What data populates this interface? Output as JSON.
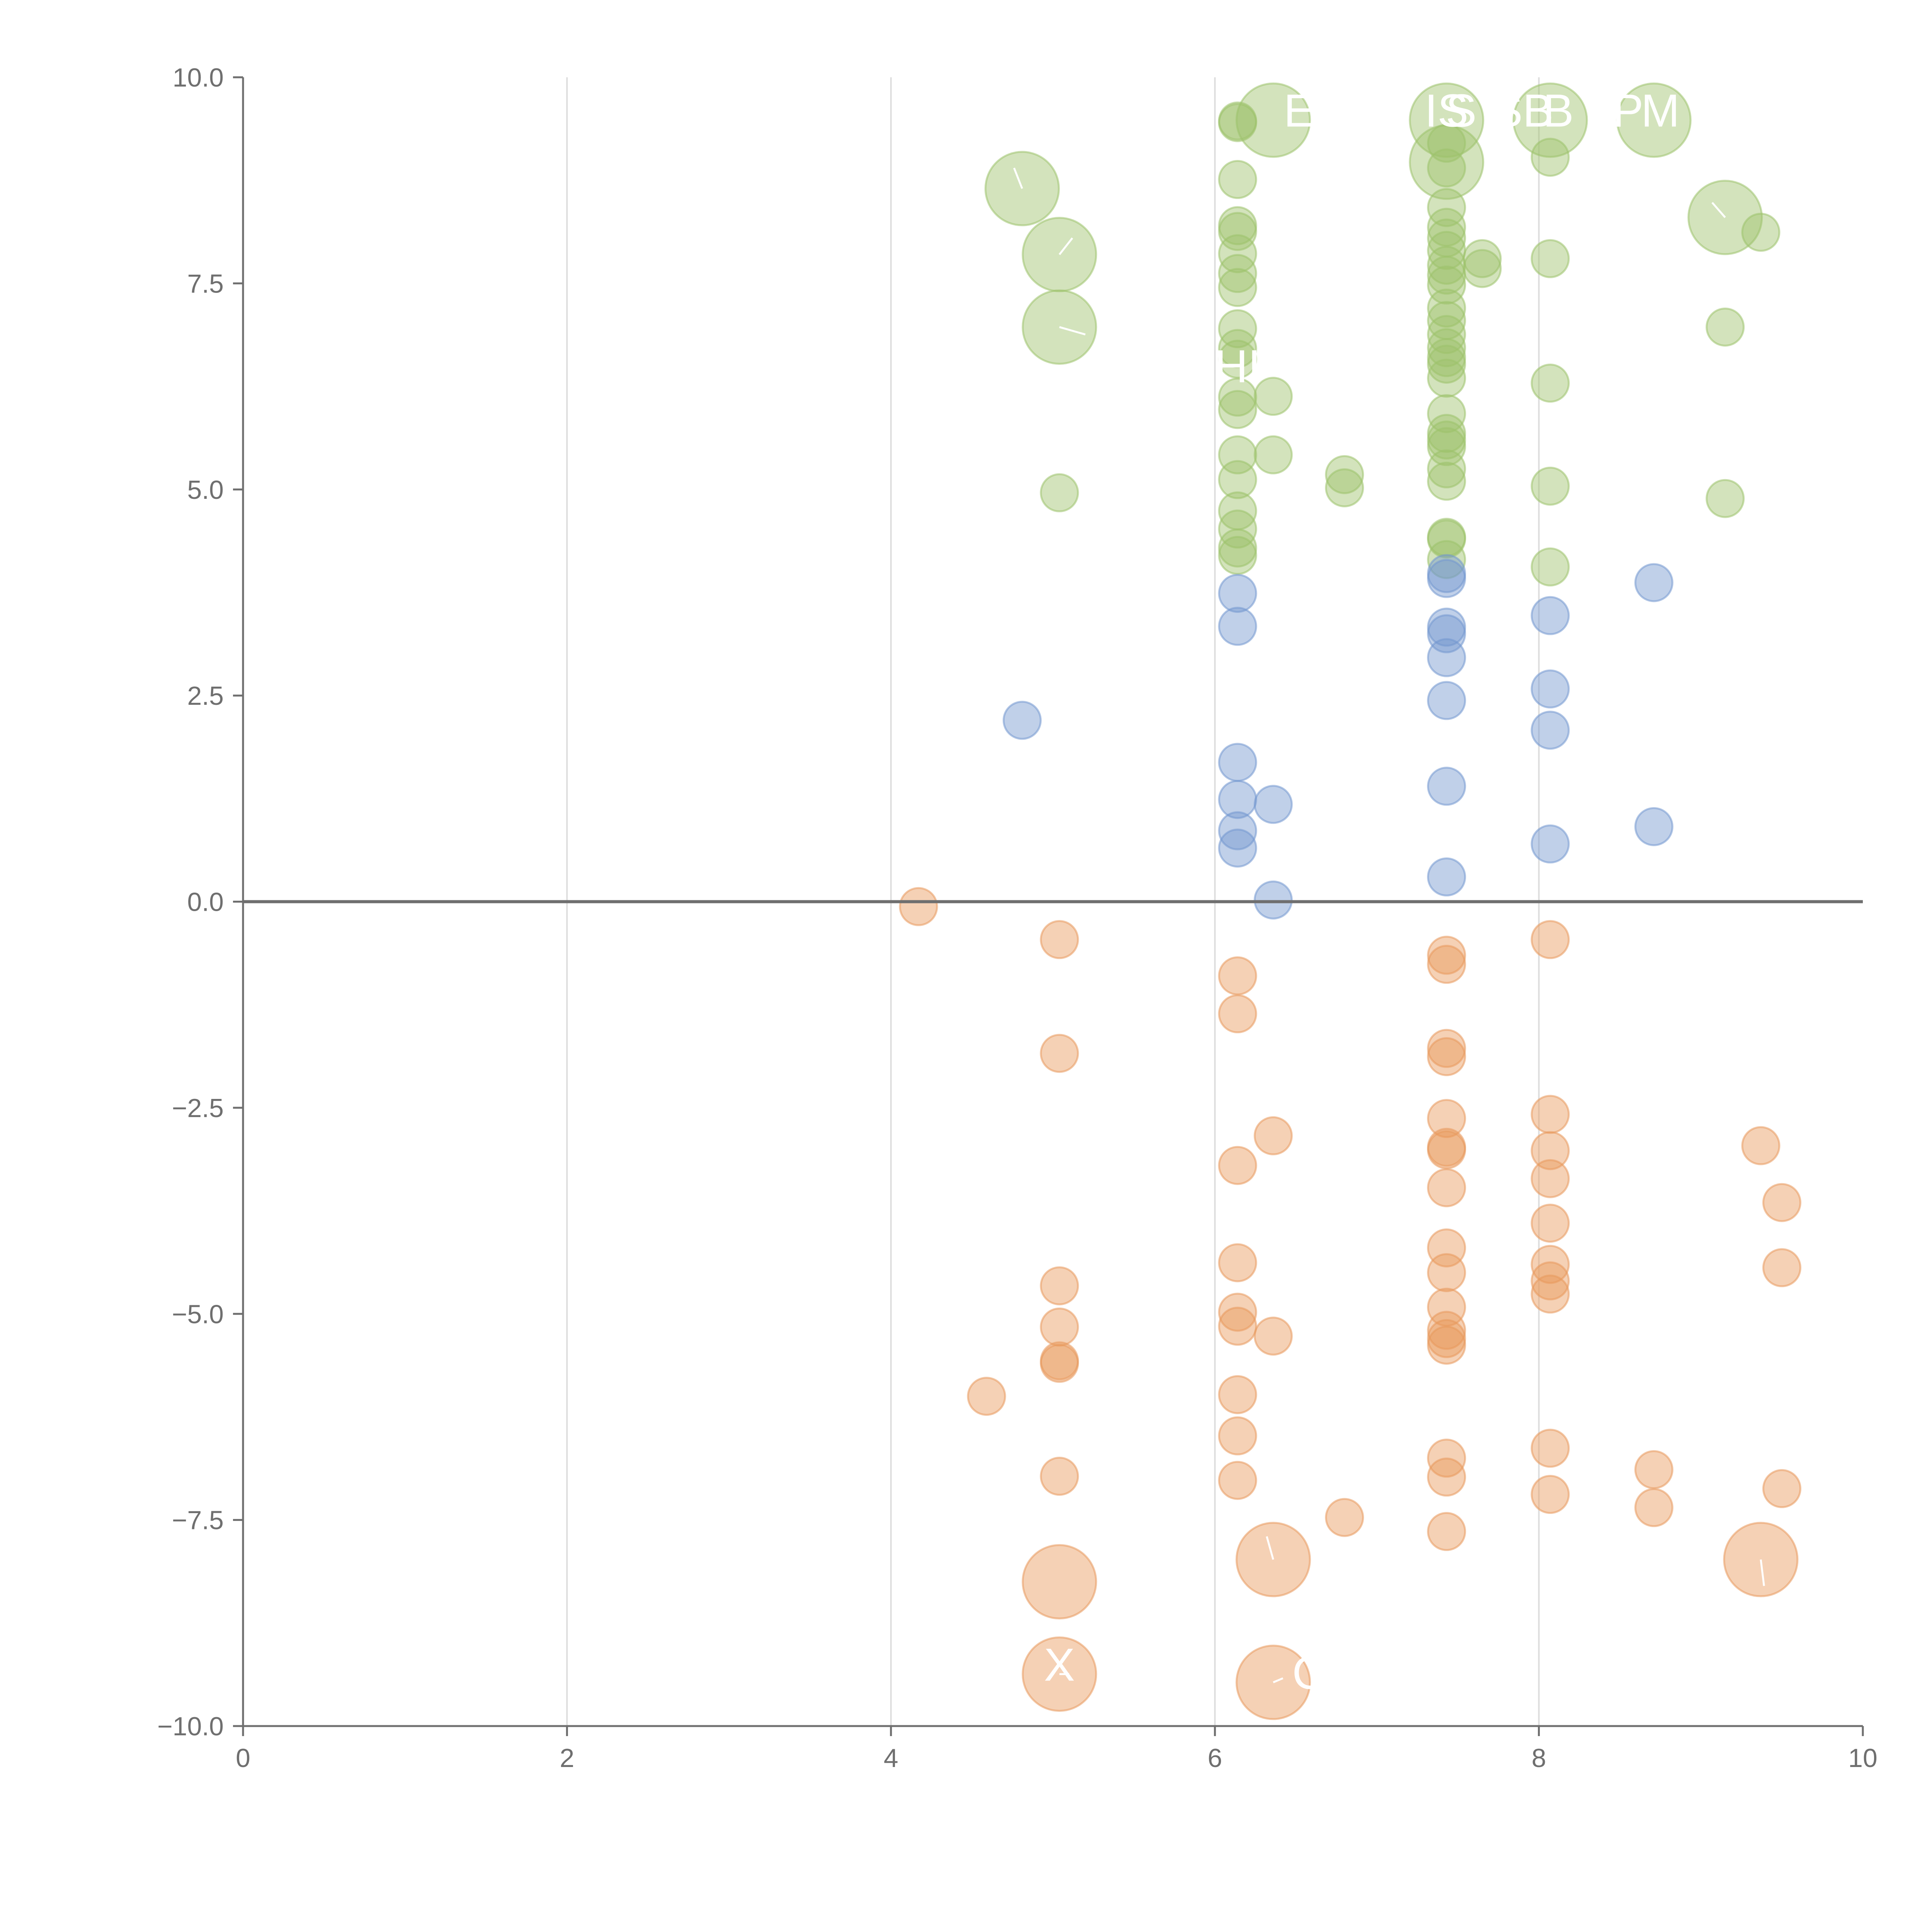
{
  "chart_data": {
    "type": "scatter",
    "subtype": "bubble",
    "title": "",
    "xlabel": "",
    "ylabel": "",
    "xlim": [
      0,
      10
    ],
    "ylim": [
      -10,
      10
    ],
    "x_ticks": [
      "0",
      "2",
      "4",
      "6",
      "8",
      "10"
    ],
    "y_ticks": [
      "10.0",
      "7.5",
      "5.0",
      "2.5",
      "0.0",
      "−2.5",
      "−5.0",
      "−7.5",
      "−10.0"
    ],
    "x_gridlines": [
      2,
      4,
      6,
      8
    ],
    "zero_line": 0,
    "colors": {
      "green": "#9dc26b",
      "blue": "#7397cf",
      "orange": "#e8995c",
      "axis": "#6f6f6f",
      "grid": "#dddddd",
      "label": "#ffffff"
    },
    "series": [
      {
        "name": "green",
        "color": "#9dc26b",
        "points": [
          {
            "x": 4.81,
            "y": 8.65,
            "s": 2
          },
          {
            "x": 5.04,
            "y": 7.85,
            "s": 2
          },
          {
            "x": 5.04,
            "y": 6.97,
            "s": 2
          },
          {
            "x": 5.04,
            "y": 4.96,
            "s": 1
          },
          {
            "x": 6.14,
            "y": 9.47,
            "s": 1
          },
          {
            "x": 6.14,
            "y": 9.45,
            "s": 1
          },
          {
            "x": 6.14,
            "y": 8.76,
            "s": 1
          },
          {
            "x": 6.14,
            "y": 8.2,
            "s": 1
          },
          {
            "x": 6.14,
            "y": 8.13,
            "s": 1
          },
          {
            "x": 6.14,
            "y": 7.86,
            "s": 1
          },
          {
            "x": 6.14,
            "y": 7.62,
            "s": 1
          },
          {
            "x": 6.14,
            "y": 7.45,
            "s": 1
          },
          {
            "x": 6.14,
            "y": 6.95,
            "s": 1
          },
          {
            "x": 6.14,
            "y": 6.71,
            "s": 1
          },
          {
            "x": 6.14,
            "y": 6.58,
            "s": 1
          },
          {
            "x": 6.14,
            "y": 6.12,
            "s": 1
          },
          {
            "x": 6.14,
            "y": 5.97,
            "s": 1
          },
          {
            "x": 6.14,
            "y": 5.42,
            "s": 1
          },
          {
            "x": 6.14,
            "y": 5.12,
            "s": 1
          },
          {
            "x": 6.14,
            "y": 4.74,
            "s": 1
          },
          {
            "x": 6.14,
            "y": 4.52,
            "s": 1
          },
          {
            "x": 6.14,
            "y": 4.29,
            "s": 1
          },
          {
            "x": 6.14,
            "y": 4.2,
            "s": 1
          },
          {
            "x": 6.36,
            "y": 9.48,
            "s": 2
          },
          {
            "x": 6.36,
            "y": 6.13,
            "s": 1
          },
          {
            "x": 6.36,
            "y": 5.42,
            "s": 1
          },
          {
            "x": 6.8,
            "y": 5.18,
            "s": 1
          },
          {
            "x": 6.8,
            "y": 5.02,
            "s": 1
          },
          {
            "x": 7.43,
            "y": 9.48,
            "s": 2
          },
          {
            "x": 7.43,
            "y": 8.97,
            "s": 2
          },
          {
            "x": 7.43,
            "y": 9.2,
            "s": 1
          },
          {
            "x": 7.43,
            "y": 8.9,
            "s": 1
          },
          {
            "x": 7.43,
            "y": 8.42,
            "s": 1
          },
          {
            "x": 7.43,
            "y": 8.18,
            "s": 1
          },
          {
            "x": 7.43,
            "y": 8.05,
            "s": 1
          },
          {
            "x": 7.43,
            "y": 7.9,
            "s": 1
          },
          {
            "x": 7.43,
            "y": 7.72,
            "s": 1
          },
          {
            "x": 7.43,
            "y": 7.6,
            "s": 1
          },
          {
            "x": 7.43,
            "y": 7.48,
            "s": 1
          },
          {
            "x": 7.43,
            "y": 7.2,
            "s": 1
          },
          {
            "x": 7.43,
            "y": 7.05,
            "s": 1
          },
          {
            "x": 7.43,
            "y": 6.88,
            "s": 1
          },
          {
            "x": 7.43,
            "y": 6.72,
            "s": 1
          },
          {
            "x": 7.43,
            "y": 6.6,
            "s": 1
          },
          {
            "x": 7.43,
            "y": 6.52,
            "s": 1
          },
          {
            "x": 7.43,
            "y": 6.35,
            "s": 1
          },
          {
            "x": 7.43,
            "y": 5.92,
            "s": 1
          },
          {
            "x": 7.43,
            "y": 5.68,
            "s": 1
          },
          {
            "x": 7.43,
            "y": 5.6,
            "s": 1
          },
          {
            "x": 7.43,
            "y": 5.52,
            "s": 1
          },
          {
            "x": 7.43,
            "y": 5.25,
            "s": 1
          },
          {
            "x": 7.43,
            "y": 5.1,
            "s": 1
          },
          {
            "x": 7.43,
            "y": 4.42,
            "s": 1
          },
          {
            "x": 7.43,
            "y": 4.4,
            "s": 1
          },
          {
            "x": 7.43,
            "y": 4.15,
            "s": 1
          },
          {
            "x": 7.65,
            "y": 7.8,
            "s": 1
          },
          {
            "x": 7.65,
            "y": 7.68,
            "s": 1
          },
          {
            "x": 8.07,
            "y": 9.48,
            "s": 2
          },
          {
            "x": 8.07,
            "y": 9.03,
            "s": 1
          },
          {
            "x": 8.07,
            "y": 7.8,
            "s": 1
          },
          {
            "x": 8.07,
            "y": 6.29,
            "s": 1
          },
          {
            "x": 8.07,
            "y": 5.04,
            "s": 1
          },
          {
            "x": 8.07,
            "y": 4.06,
            "s": 1
          },
          {
            "x": 8.71,
            "y": 9.48,
            "s": 2
          },
          {
            "x": 9.15,
            "y": 8.3,
            "s": 2
          },
          {
            "x": 9.15,
            "y": 6.97,
            "s": 1
          },
          {
            "x": 9.15,
            "y": 4.89,
            "s": 1
          },
          {
            "x": 9.37,
            "y": 8.12,
            "s": 1
          }
        ]
      },
      {
        "name": "blue",
        "color": "#7397cf",
        "points": [
          {
            "x": 4.81,
            "y": 2.2,
            "s": 1
          },
          {
            "x": 6.14,
            "y": 3.74,
            "s": 1
          },
          {
            "x": 6.14,
            "y": 3.34,
            "s": 1
          },
          {
            "x": 6.14,
            "y": 1.69,
            "s": 1
          },
          {
            "x": 6.14,
            "y": 1.24,
            "s": 1
          },
          {
            "x": 6.14,
            "y": 0.86,
            "s": 1
          },
          {
            "x": 6.14,
            "y": 0.65,
            "s": 1
          },
          {
            "x": 6.36,
            "y": 1.18,
            "s": 1
          },
          {
            "x": 6.36,
            "y": 0.02,
            "s": 1
          },
          {
            "x": 7.43,
            "y": 3.98,
            "s": 1
          },
          {
            "x": 7.43,
            "y": 3.92,
            "s": 1
          },
          {
            "x": 7.43,
            "y": 3.33,
            "s": 1
          },
          {
            "x": 7.43,
            "y": 3.25,
            "s": 1
          },
          {
            "x": 7.43,
            "y": 2.96,
            "s": 1
          },
          {
            "x": 7.43,
            "y": 2.44,
            "s": 1
          },
          {
            "x": 7.43,
            "y": 1.4,
            "s": 1
          },
          {
            "x": 7.43,
            "y": 0.3,
            "s": 1
          },
          {
            "x": 8.07,
            "y": 3.47,
            "s": 1
          },
          {
            "x": 8.07,
            "y": 2.58,
            "s": 1
          },
          {
            "x": 8.07,
            "y": 2.08,
            "s": 1
          },
          {
            "x": 8.07,
            "y": 0.7,
            "s": 1
          },
          {
            "x": 8.71,
            "y": 3.87,
            "s": 1
          },
          {
            "x": 8.71,
            "y": 0.91,
            "s": 1
          }
        ]
      },
      {
        "name": "orange",
        "color": "#e8995c",
        "points": [
          {
            "x": 4.17,
            "y": -0.06,
            "s": 1
          },
          {
            "x": 4.59,
            "y": -6.0,
            "s": 1
          },
          {
            "x": 5.04,
            "y": -0.46,
            "s": 1
          },
          {
            "x": 5.04,
            "y": -1.84,
            "s": 1
          },
          {
            "x": 5.04,
            "y": -4.66,
            "s": 1
          },
          {
            "x": 5.04,
            "y": -5.16,
            "s": 1
          },
          {
            "x": 5.04,
            "y": -5.57,
            "s": 1
          },
          {
            "x": 5.04,
            "y": -5.6,
            "s": 1
          },
          {
            "x": 5.04,
            "y": -6.97,
            "s": 1
          },
          {
            "x": 5.04,
            "y": -8.25,
            "s": 2
          },
          {
            "x": 5.04,
            "y": -9.37,
            "s": 2
          },
          {
            "x": 6.14,
            "y": -0.9,
            "s": 1
          },
          {
            "x": 6.14,
            "y": -1.36,
            "s": 1
          },
          {
            "x": 6.14,
            "y": -3.2,
            "s": 1
          },
          {
            "x": 6.14,
            "y": -4.38,
            "s": 1
          },
          {
            "x": 6.14,
            "y": -4.98,
            "s": 1
          },
          {
            "x": 6.14,
            "y": -5.15,
            "s": 1
          },
          {
            "x": 6.14,
            "y": -5.98,
            "s": 1
          },
          {
            "x": 6.14,
            "y": -6.48,
            "s": 1
          },
          {
            "x": 6.14,
            "y": -7.02,
            "s": 1
          },
          {
            "x": 6.36,
            "y": -2.84,
            "s": 1
          },
          {
            "x": 6.36,
            "y": -5.27,
            "s": 1
          },
          {
            "x": 6.36,
            "y": -7.98,
            "s": 2
          },
          {
            "x": 6.36,
            "y": -9.47,
            "s": 2
          },
          {
            "x": 6.8,
            "y": -7.47,
            "s": 1
          },
          {
            "x": 7.43,
            "y": -0.65,
            "s": 1
          },
          {
            "x": 7.43,
            "y": -0.76,
            "s": 1
          },
          {
            "x": 7.43,
            "y": -1.78,
            "s": 1
          },
          {
            "x": 7.43,
            "y": -1.88,
            "s": 1
          },
          {
            "x": 7.43,
            "y": -2.63,
            "s": 1
          },
          {
            "x": 7.43,
            "y": -2.98,
            "s": 1
          },
          {
            "x": 7.43,
            "y": -3.01,
            "s": 1
          },
          {
            "x": 7.43,
            "y": -3.47,
            "s": 1
          },
          {
            "x": 7.43,
            "y": -4.2,
            "s": 1
          },
          {
            "x": 7.43,
            "y": -4.5,
            "s": 1
          },
          {
            "x": 7.43,
            "y": -4.92,
            "s": 1
          },
          {
            "x": 7.43,
            "y": -5.2,
            "s": 1
          },
          {
            "x": 7.43,
            "y": -5.3,
            "s": 1
          },
          {
            "x": 7.43,
            "y": -5.38,
            "s": 1
          },
          {
            "x": 7.43,
            "y": -6.75,
            "s": 1
          },
          {
            "x": 7.43,
            "y": -6.98,
            "s": 1
          },
          {
            "x": 7.43,
            "y": -7.64,
            "s": 1
          },
          {
            "x": 8.07,
            "y": -0.46,
            "s": 1
          },
          {
            "x": 8.07,
            "y": -2.58,
            "s": 1
          },
          {
            "x": 8.07,
            "y": -3.02,
            "s": 1
          },
          {
            "x": 8.07,
            "y": -3.36,
            "s": 1
          },
          {
            "x": 8.07,
            "y": -3.9,
            "s": 1
          },
          {
            "x": 8.07,
            "y": -4.4,
            "s": 1
          },
          {
            "x": 8.07,
            "y": -4.6,
            "s": 1
          },
          {
            "x": 8.07,
            "y": -4.76,
            "s": 1
          },
          {
            "x": 8.07,
            "y": -6.63,
            "s": 1
          },
          {
            "x": 8.07,
            "y": -7.19,
            "s": 1
          },
          {
            "x": 8.71,
            "y": -6.89,
            "s": 1
          },
          {
            "x": 8.71,
            "y": -7.35,
            "s": 1
          },
          {
            "x": 9.37,
            "y": -2.96,
            "s": 1
          },
          {
            "x": 9.37,
            "y": -7.98,
            "s": 2
          },
          {
            "x": 9.5,
            "y": -3.65,
            "s": 1
          },
          {
            "x": 9.5,
            "y": -4.44,
            "s": 1
          },
          {
            "x": 9.5,
            "y": -7.12,
            "s": 1
          }
        ]
      }
    ],
    "annotations": [
      {
        "text": "E",
        "x": 6.36,
        "y": 9.48,
        "lx": 6.52,
        "ly": 9.55
      },
      {
        "text": "IS",
        "x": 7.43,
        "y": 9.48,
        "lx": 7.43,
        "ly": 9.55
      },
      {
        "text": "S",
        "x": 7.43,
        "y": 8.97,
        "lx": 7.52,
        "ly": 9.55
      },
      {
        "text": "SB",
        "x": 8.07,
        "y": 9.48,
        "lx": 7.9,
        "ly": 9.55
      },
      {
        "text": "B",
        "x": 8.07,
        "y": 9.48,
        "lx": 8.12,
        "ly": 9.55
      },
      {
        "text": "P",
        "x": 8.71,
        "y": 9.48,
        "lx": 8.55,
        "ly": 9.55
      },
      {
        "text": "M",
        "x": 8.71,
        "y": 9.48,
        "lx": 8.75,
        "ly": 9.55
      },
      {
        "text": "HI",
        "x": 6.14,
        "y": 6.58,
        "lx": 6.14,
        "ly": 6.45
      },
      {
        "text": "·",
        "x": 6.14,
        "y": -6.48,
        "lx": 6.28,
        "ly": -6.45
      },
      {
        "text": "X",
        "x": 5.04,
        "y": -9.37,
        "lx": 5.04,
        "ly": -9.3
      },
      {
        "text": "C",
        "x": 6.36,
        "y": -9.47,
        "lx": 6.58,
        "ly": -9.4
      }
    ],
    "leader_lines": [
      {
        "x1": 4.81,
        "y1": 8.65,
        "x2": 4.76,
        "y2": 8.9
      },
      {
        "x1": 5.04,
        "y1": 7.85,
        "x2": 5.12,
        "y2": 8.05
      },
      {
        "x1": 5.04,
        "y1": 6.97,
        "x2": 5.2,
        "y2": 6.88
      },
      {
        "x1": 9.15,
        "y1": 8.3,
        "x2": 9.07,
        "y2": 8.48
      },
      {
        "x1": 6.36,
        "y1": -7.98,
        "x2": 6.32,
        "y2": -7.7
      },
      {
        "x1": 9.37,
        "y1": -7.98,
        "x2": 9.39,
        "y2": -8.3
      },
      {
        "x1": 5.04,
        "y1": -9.37,
        "x2": 5.1,
        "y2": -9.37
      },
      {
        "x1": 6.36,
        "y1": -9.47,
        "x2": 6.42,
        "y2": -9.42
      }
    ]
  }
}
